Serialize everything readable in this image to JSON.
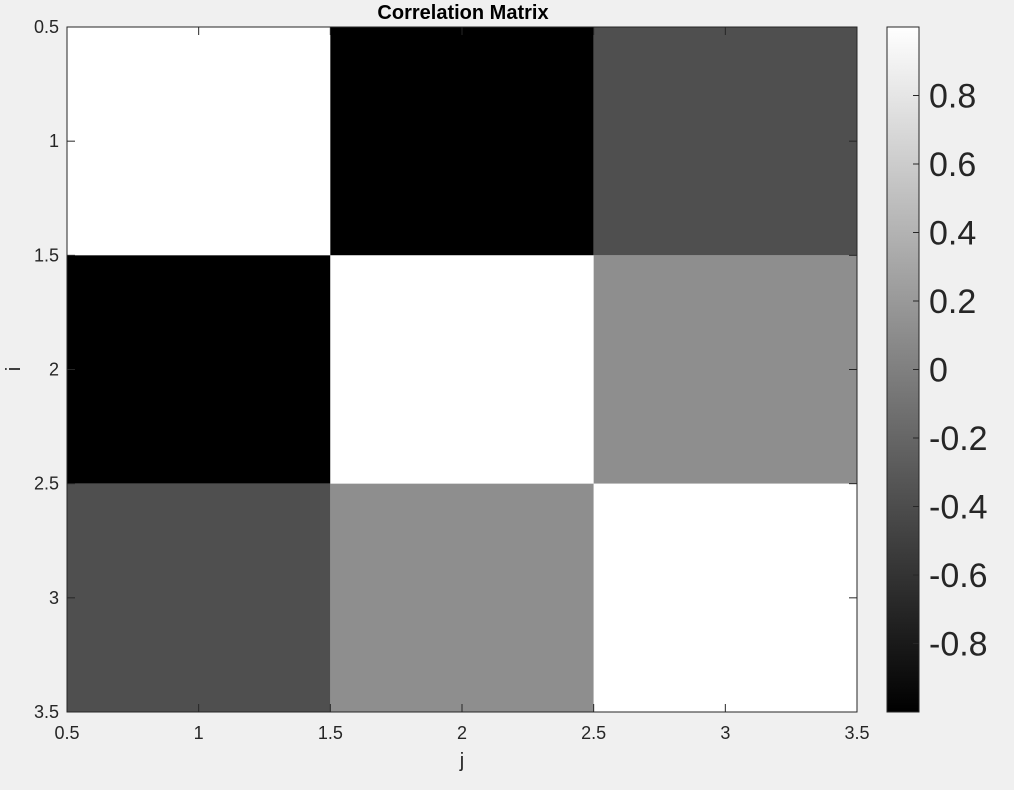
{
  "chart_data": {
    "type": "heatmap",
    "title": "Correlation Matrix",
    "xlabel": "j",
    "ylabel": "i",
    "xlim": [
      0.5,
      3.5
    ],
    "ylim": [
      0.5,
      3.5
    ],
    "y_direction": "reversed",
    "x_ticks": [
      "0.5",
      "1",
      "1.5",
      "2",
      "2.5",
      "3",
      "3.5"
    ],
    "y_ticks": [
      "0.5",
      "1",
      "1.5",
      "2",
      "2.5",
      "3",
      "3.5"
    ],
    "rows": [
      1,
      2,
      3
    ],
    "cols": [
      1,
      2,
      3
    ],
    "values": [
      [
        1.0,
        -1.0,
        -0.38
      ],
      [
        -1.0,
        1.0,
        0.11
      ],
      [
        -0.38,
        0.11,
        1.0
      ]
    ],
    "colormap": "gray",
    "colorbar": {
      "position": "right",
      "clim": [
        -1.0,
        1.0
      ],
      "ticks": [
        "0.8",
        "0.6",
        "0.4",
        "0.2",
        "0",
        "-0.2",
        "-0.4",
        "-0.6",
        "-0.8"
      ]
    },
    "grid": false
  }
}
